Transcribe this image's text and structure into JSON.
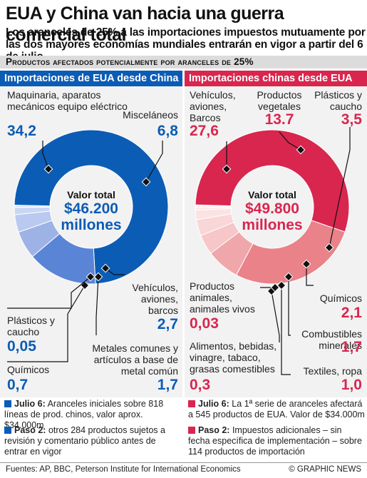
{
  "title": "EUA y China van hacia una guerra comercial total",
  "subtitle": "Los aranceles de 25% a las importaciones impuestos mutuamente por las dos mayores economías mundiales entrarán en vigor a partir del 6 de julio",
  "band": "Productos afectados potencialmente por aranceles de 25%",
  "colors": {
    "blue": "#0b5cb5",
    "red": "#d8264f"
  },
  "chart_data": [
    {
      "type": "pie",
      "title": "Importaciones de EUA desde China",
      "center_label": "Valor total",
      "center_value": "$46.200 millones",
      "slices": [
        {
          "label": "Maquinaria, aparatos mecánicos equipo eléctrico",
          "value": 34.2,
          "display": "34,2"
        },
        {
          "label": "Misceláneos",
          "value": 6.8,
          "display": "6,8"
        },
        {
          "label": "Vehículos, aviones, barcos",
          "value": 2.7,
          "display": "2,7"
        },
        {
          "label": "Metales comunes y artículos a base de metal común",
          "value": 1.7,
          "display": "1,7"
        },
        {
          "label": "Químicos",
          "value": 0.7,
          "display": "0,7"
        },
        {
          "label": "Plásticos y caucho",
          "value": 0.05,
          "display": "0,05"
        }
      ]
    },
    {
      "type": "pie",
      "title": "Importaciones chinas desde EUA",
      "center_label": "Valor total",
      "center_value": "$49.800 millones",
      "slices": [
        {
          "label": "Vehículos, aviones, Barcos",
          "value": 27.6,
          "display": "27,6"
        },
        {
          "label": "Productos vegetales",
          "value": 13.7,
          "display": "13.7"
        },
        {
          "label": "Plásticos y caucho",
          "value": 3.5,
          "display": "3,5"
        },
        {
          "label": "Químicos",
          "value": 2.1,
          "display": "2,1"
        },
        {
          "label": "Combustibles minerales",
          "value": 1.7,
          "display": "1,7"
        },
        {
          "label": "Textiles, ropa",
          "value": 1.0,
          "display": "1,0"
        },
        {
          "label": "Alimentos, bebidas, vinagre, tabaco, grasas comestibles",
          "value": 0.3,
          "display": "0,3"
        },
        {
          "label": "Productos animales, animales vivos",
          "value": 0.03,
          "display": "0,03"
        }
      ]
    }
  ],
  "notes": {
    "left_1_head": "Julio 6:",
    "left_1_text": "Aranceles iniciales sobre 818 líneas de prod. chinos, valor aprox. $34.000m",
    "left_2_head": "Paso 2:",
    "left_2_text": "otros 284 productos sujetos a revisión y comentario público antes de entrar en vigor",
    "right_1_head": "Julio 6:",
    "right_1_text": "La 1ª serie de aranceles afectará a 545 productos de EUA. Valor de $34.000m",
    "right_2_head": "Paso 2:",
    "right_2_text": "Impuestos adicionales – sin fecha específica de implementación – sobre 114 productos de importación"
  },
  "footer": {
    "sources": "Fuentes: AP, BBC, Peterson Institute for International Economics",
    "credit": "© GRAPHIC NEWS"
  }
}
